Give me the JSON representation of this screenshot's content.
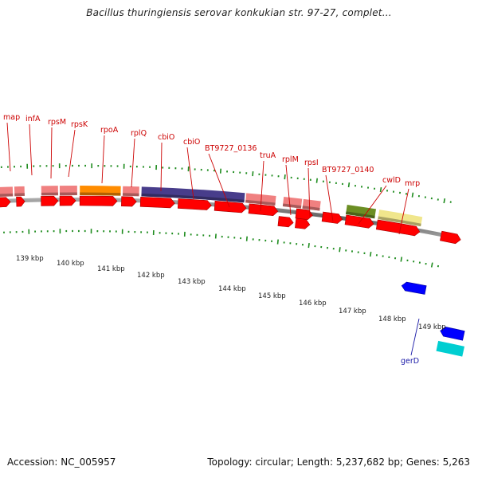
{
  "title": "Bacillus thuringiensis serovar konkukian str. 97-27, complet...",
  "footer": {
    "accession": "Accession: NC_005957",
    "summary": "Topology: circular; Length: 5,237,682 bp; Genes: 5,263"
  },
  "colors": {
    "cds": "#ff0000",
    "rrna_like": "#f08080",
    "rpoA": "#ff8c00",
    "cbiO_long": "#483d8b",
    "BT9727_0140": "#6b8e23",
    "cwlD": "#f0e68c",
    "gerD": "#0000ff",
    "teal": "#00ced1",
    "tick": "#1e8c1e",
    "backbone": "#808080",
    "label_red": "#cc0000",
    "label_blue": "#1a1aa8"
  },
  "gene_labels": [
    "map",
    "infA",
    "rpsM",
    "rpsK",
    "rpoA",
    "rplQ",
    "cbiO",
    "cbiO",
    "BT9727_0136",
    "truA",
    "rplM",
    "rpsI",
    "BT9727_0140",
    "cwlD",
    "mrp"
  ],
  "gene_labels_minus": [
    "gerD"
  ],
  "kbp_labels": [
    "139 kbp",
    "140 kbp",
    "141 kbp",
    "142 kbp",
    "143 kbp",
    "144 kbp",
    "145 kbp",
    "146 kbp",
    "147 kbp",
    "148 kbp",
    "149 kbp"
  ]
}
